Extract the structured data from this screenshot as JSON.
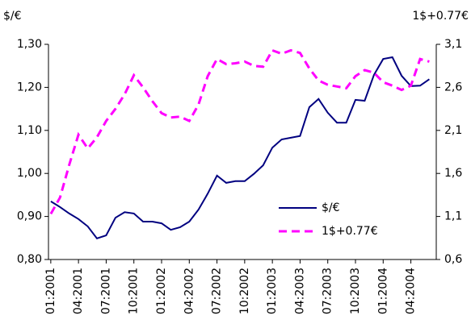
{
  "chart_data": {
    "type": "line",
    "y_label": "$/€",
    "y2_label": "1$+0.77€",
    "categories": [
      "01:2001",
      null,
      null,
      "04:2001",
      null,
      null,
      "07:2001",
      null,
      null,
      "10:2001",
      null,
      null,
      "01:2002",
      null,
      null,
      "04:2002",
      null,
      null,
      "07:2002",
      null,
      null,
      "10:2002",
      null,
      null,
      "01:2003",
      null,
      null,
      "04:2003",
      null,
      null,
      "07:2003",
      null,
      null,
      "10:2003",
      null,
      null,
      "01:2004",
      null,
      null,
      "04:2004",
      null,
      null
    ],
    "series": [
      {
        "name": "$/€",
        "color": "#000080",
        "dashed": false,
        "values": [
          0.935,
          0.922,
          0.907,
          0.894,
          0.877,
          0.849,
          0.856,
          0.897,
          0.91,
          0.907,
          0.888,
          0.888,
          0.884,
          0.869,
          0.875,
          0.888,
          0.916,
          0.953,
          0.995,
          0.978,
          0.982,
          0.982,
          0.999,
          1.019,
          1.06,
          1.079,
          1.083,
          1.087,
          1.154,
          1.173,
          1.141,
          1.118,
          1.118,
          1.171,
          1.169,
          1.229,
          1.266,
          1.27,
          1.227,
          1.203,
          1.204,
          1.219
        ]
      },
      {
        "name": "1$+0.77€",
        "color": "#ff00ff",
        "dashed": true,
        "axis": "y2",
        "values": [
          1.13,
          1.32,
          1.7,
          2.05,
          1.89,
          2.02,
          2.21,
          2.35,
          2.52,
          2.74,
          2.6,
          2.44,
          2.3,
          2.25,
          2.26,
          2.21,
          2.4,
          2.73,
          2.93,
          2.87,
          2.88,
          2.9,
          2.85,
          2.84,
          3.03,
          2.99,
          3.03,
          3.0,
          2.82,
          2.68,
          2.63,
          2.61,
          2.59,
          2.73,
          2.8,
          2.77,
          2.66,
          2.62,
          2.57,
          2.62,
          2.93,
          2.9
        ]
      }
    ],
    "ylim": [
      0.8,
      1.3
    ],
    "yticks": [
      {
        "value": 0.8,
        "label": "0,80"
      },
      {
        "value": 0.9,
        "label": "0,90"
      },
      {
        "value": 1.0,
        "label": "1,00"
      },
      {
        "value": 1.1,
        "label": "1,10"
      },
      {
        "value": 1.2,
        "label": "1,20"
      },
      {
        "value": 1.3,
        "label": "1,30"
      }
    ],
    "y2lim": [
      0.6,
      3.1
    ],
    "y2ticks": [
      {
        "value": 0.6,
        "label": "0,6"
      },
      {
        "value": 1.1,
        "label": "1,1"
      },
      {
        "value": 1.6,
        "label": "1,6"
      },
      {
        "value": 2.1,
        "label": "2,1"
      },
      {
        "value": 2.6,
        "label": "2,6"
      },
      {
        "value": 3.1,
        "label": "3,1"
      }
    ],
    "grid": false
  }
}
